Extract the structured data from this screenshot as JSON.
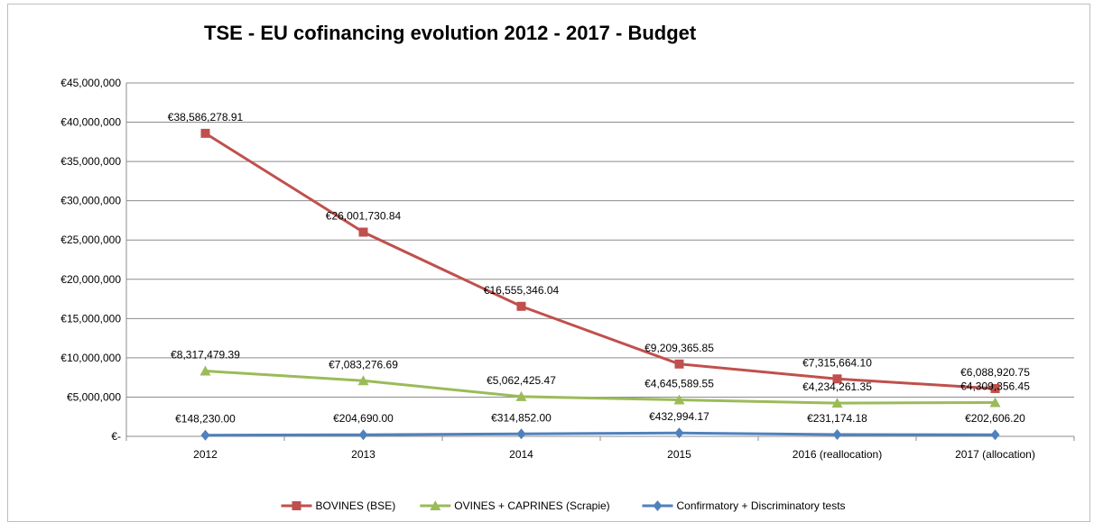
{
  "chart_data": {
    "type": "line",
    "title": "TSE - EU cofinancing evolution 2012 - 2017 - Budget",
    "categories": [
      "2012",
      "2013",
      "2014",
      "2015",
      "2016 (reallocation)",
      "2017 (allocation)"
    ],
    "yticks": [
      "€-",
      "€5,000,000",
      "€10,000,000",
      "€15,000,000",
      "€20,000,000",
      "€25,000,000",
      "€30,000,000",
      "€35,000,000",
      "€40,000,000",
      "€45,000,000"
    ],
    "ylim": [
      0,
      45000000
    ],
    "grid": true,
    "legend_position": "bottom",
    "series": [
      {
        "name": "BOVINES (BSE)",
        "color": "#c0504d",
        "marker": "square",
        "values": [
          38586278.91,
          26001730.84,
          16555346.04,
          9209365.85,
          7315664.1,
          6088920.75
        ],
        "labels": [
          "€38,586,278.91",
          "€26,001,730.84",
          "€16,555,346.04",
          "€9,209,365.85",
          "€7,315,664.10",
          "€6,088,920.75"
        ]
      },
      {
        "name": "OVINES + CAPRINES (Scrapie)",
        "color": "#9bbb59",
        "marker": "triangle",
        "values": [
          8317479.39,
          7083276.69,
          5062425.47,
          4645589.55,
          4234261.35,
          4309356.45
        ],
        "labels": [
          "€8,317,479.39",
          "€7,083,276.69",
          "€5,062,425.47",
          "€4,645,589.55",
          "€4,234,261.35",
          "€4,309,356.45"
        ]
      },
      {
        "name": "Confirmatory + Discriminatory tests",
        "color": "#4f81bd",
        "marker": "diamond",
        "values": [
          148230.0,
          204690.0,
          314852.0,
          432994.17,
          231174.18,
          202606.2
        ],
        "labels": [
          "€148,230.00",
          "€204,690.00",
          "€314,852.00",
          "€432,994.17",
          "€231,174.18",
          "€202,606.20"
        ]
      }
    ]
  }
}
